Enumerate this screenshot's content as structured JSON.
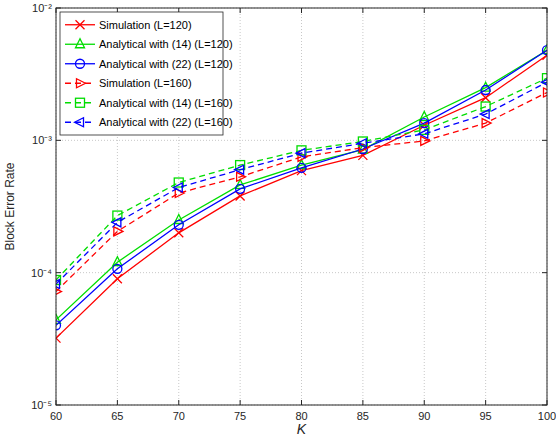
{
  "chart_data": {
    "type": "line",
    "x_label": "K",
    "y_label": "Block Error Rate",
    "x": [
      60,
      65,
      70,
      75,
      80,
      85,
      90,
      95,
      100
    ],
    "xlim": [
      60,
      100
    ],
    "xticks": [
      60,
      65,
      70,
      75,
      80,
      85,
      90,
      95,
      100
    ],
    "ylim": [
      1e-05,
      0.01
    ],
    "yticks": [
      {
        "value": 1e-05,
        "label": "10⁻⁵"
      },
      {
        "value": 0.0001,
        "label": "10⁻⁴"
      },
      {
        "value": 0.001,
        "label": "10⁻³"
      },
      {
        "value": 0.01,
        "label": "10⁻²"
      }
    ],
    "log": "y",
    "grid": true,
    "legend": "top-left",
    "series": [
      {
        "name": "Simulation (L=120)",
        "color": "#ff0000",
        "marker": "x",
        "line_style": "solid",
        "values": [
          3.2e-05,
          9e-05,
          0.0002,
          0.00038,
          0.00059,
          0.00077,
          0.0013,
          0.0021,
          0.0044
        ]
      },
      {
        "name": "Analytical with (14) (L=120)",
        "color": "#00dd00",
        "marker": "triangle-up",
        "line_style": "solid",
        "values": [
          4.4e-05,
          0.00012,
          0.00025,
          0.00046,
          0.00065,
          0.00085,
          0.0015,
          0.0025,
          0.0048
        ]
      },
      {
        "name": "Analytical with (22) (L=120)",
        "color": "#0000ff",
        "marker": "circle",
        "line_style": "solid",
        "values": [
          4e-05,
          0.000107,
          0.00023,
          0.00043,
          0.00062,
          0.00086,
          0.00135,
          0.0024,
          0.0048
        ]
      },
      {
        "name": "Simulation (L=160)",
        "color": "#ff0000",
        "marker": "triangle-right",
        "line_style": "dashed",
        "values": [
          7.2e-05,
          0.000205,
          0.0004,
          0.00053,
          0.00075,
          0.00088,
          0.00099,
          0.00135,
          0.0023
        ]
      },
      {
        "name": "Analytical with (14) (L=160)",
        "color": "#00dd00",
        "marker": "square",
        "line_style": "dashed",
        "values": [
          8.8e-05,
          0.00027,
          0.00048,
          0.00065,
          0.00084,
          0.00098,
          0.0012,
          0.0018,
          0.00295
        ]
      },
      {
        "name": "Analytical with (22) (L=160)",
        "color": "#0000ff",
        "marker": "triangle-left",
        "line_style": "dashed",
        "values": [
          8.2e-05,
          0.00024,
          0.00044,
          0.0006,
          0.0008,
          0.00095,
          0.00112,
          0.00158,
          0.00275
        ]
      }
    ]
  }
}
